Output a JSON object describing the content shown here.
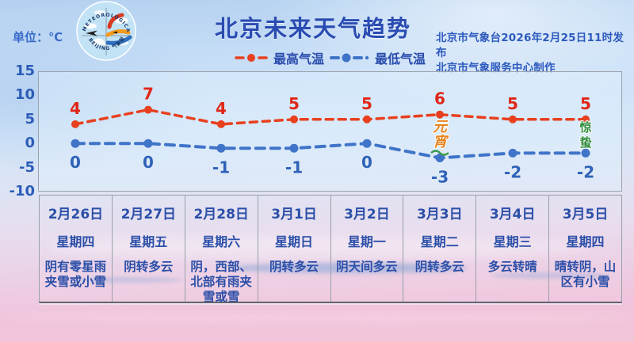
{
  "header": {
    "unit": "单位：℃",
    "title": "北京未来天气趋势",
    "issue_line1": "北京市气象台2026年2月25日11时发布",
    "issue_line2": "北京市气象服务中心制作",
    "logo": {
      "arc_top": "METEOROLOGICAL SERVICE",
      "arc_bottom": "BEIJING 气象服务"
    }
  },
  "legend": {
    "high_label": "最高气温",
    "low_label": "最低气温"
  },
  "chart_data": {
    "type": "line",
    "title": "北京未来天气趋势",
    "unit": "℃",
    "categories": [
      "2月26日",
      "2月27日",
      "2月28日",
      "3月1日",
      "3月2日",
      "3月3日",
      "3月4日",
      "3月5日"
    ],
    "series": [
      {
        "name": "最高气温",
        "values": [
          4,
          7,
          4,
          5,
          5,
          6,
          5,
          5
        ],
        "color": "#e8401f",
        "style": "dashed"
      },
      {
        "name": "最低气温",
        "values": [
          0,
          0,
          -1,
          -1,
          0,
          -3,
          -2,
          -2
        ],
        "color": "#3f74c8",
        "style": "dashed"
      }
    ],
    "ylim": [
      -10,
      15
    ],
    "yticks": [
      15,
      10,
      5,
      0,
      -5,
      -10
    ],
    "grid": false,
    "legend_position": "top",
    "annotations": [
      {
        "column": 6,
        "text": "元宵",
        "color": "#e8821c",
        "type": "festival"
      },
      {
        "column": 8,
        "text": "惊蛰",
        "color": "#2e8b3a",
        "type": "solar-term"
      }
    ]
  },
  "table": {
    "columns": [
      {
        "date": "2月26日",
        "weekday": "星期四",
        "weather": "阴有零星雨夹雪或小雪"
      },
      {
        "date": "2月27日",
        "weekday": "星期五",
        "weather": "阴转多云"
      },
      {
        "date": "2月28日",
        "weekday": "星期六",
        "weather": "阴，西部、北部有雨夹雪或雪"
      },
      {
        "date": "3月1日",
        "weekday": "星期日",
        "weather": "阴转多云"
      },
      {
        "date": "3月2日",
        "weekday": "星期一",
        "weather": "阴天间多云"
      },
      {
        "date": "3月3日",
        "weekday": "星期二",
        "weather": "阴转多云"
      },
      {
        "date": "3月4日",
        "weekday": "星期三",
        "weather": "多云转晴"
      },
      {
        "date": "3月5日",
        "weekday": "星期四",
        "weather": "晴转阴，山区有小雪"
      }
    ]
  },
  "colors": {
    "title_blue": "#2a4cb2",
    "text_blue": "#2b4fa8",
    "high_red": "#e8401f",
    "low_blue": "#3f74c8",
    "festival_orange": "#e8821c",
    "solar_term_green": "#2e8b3a"
  }
}
